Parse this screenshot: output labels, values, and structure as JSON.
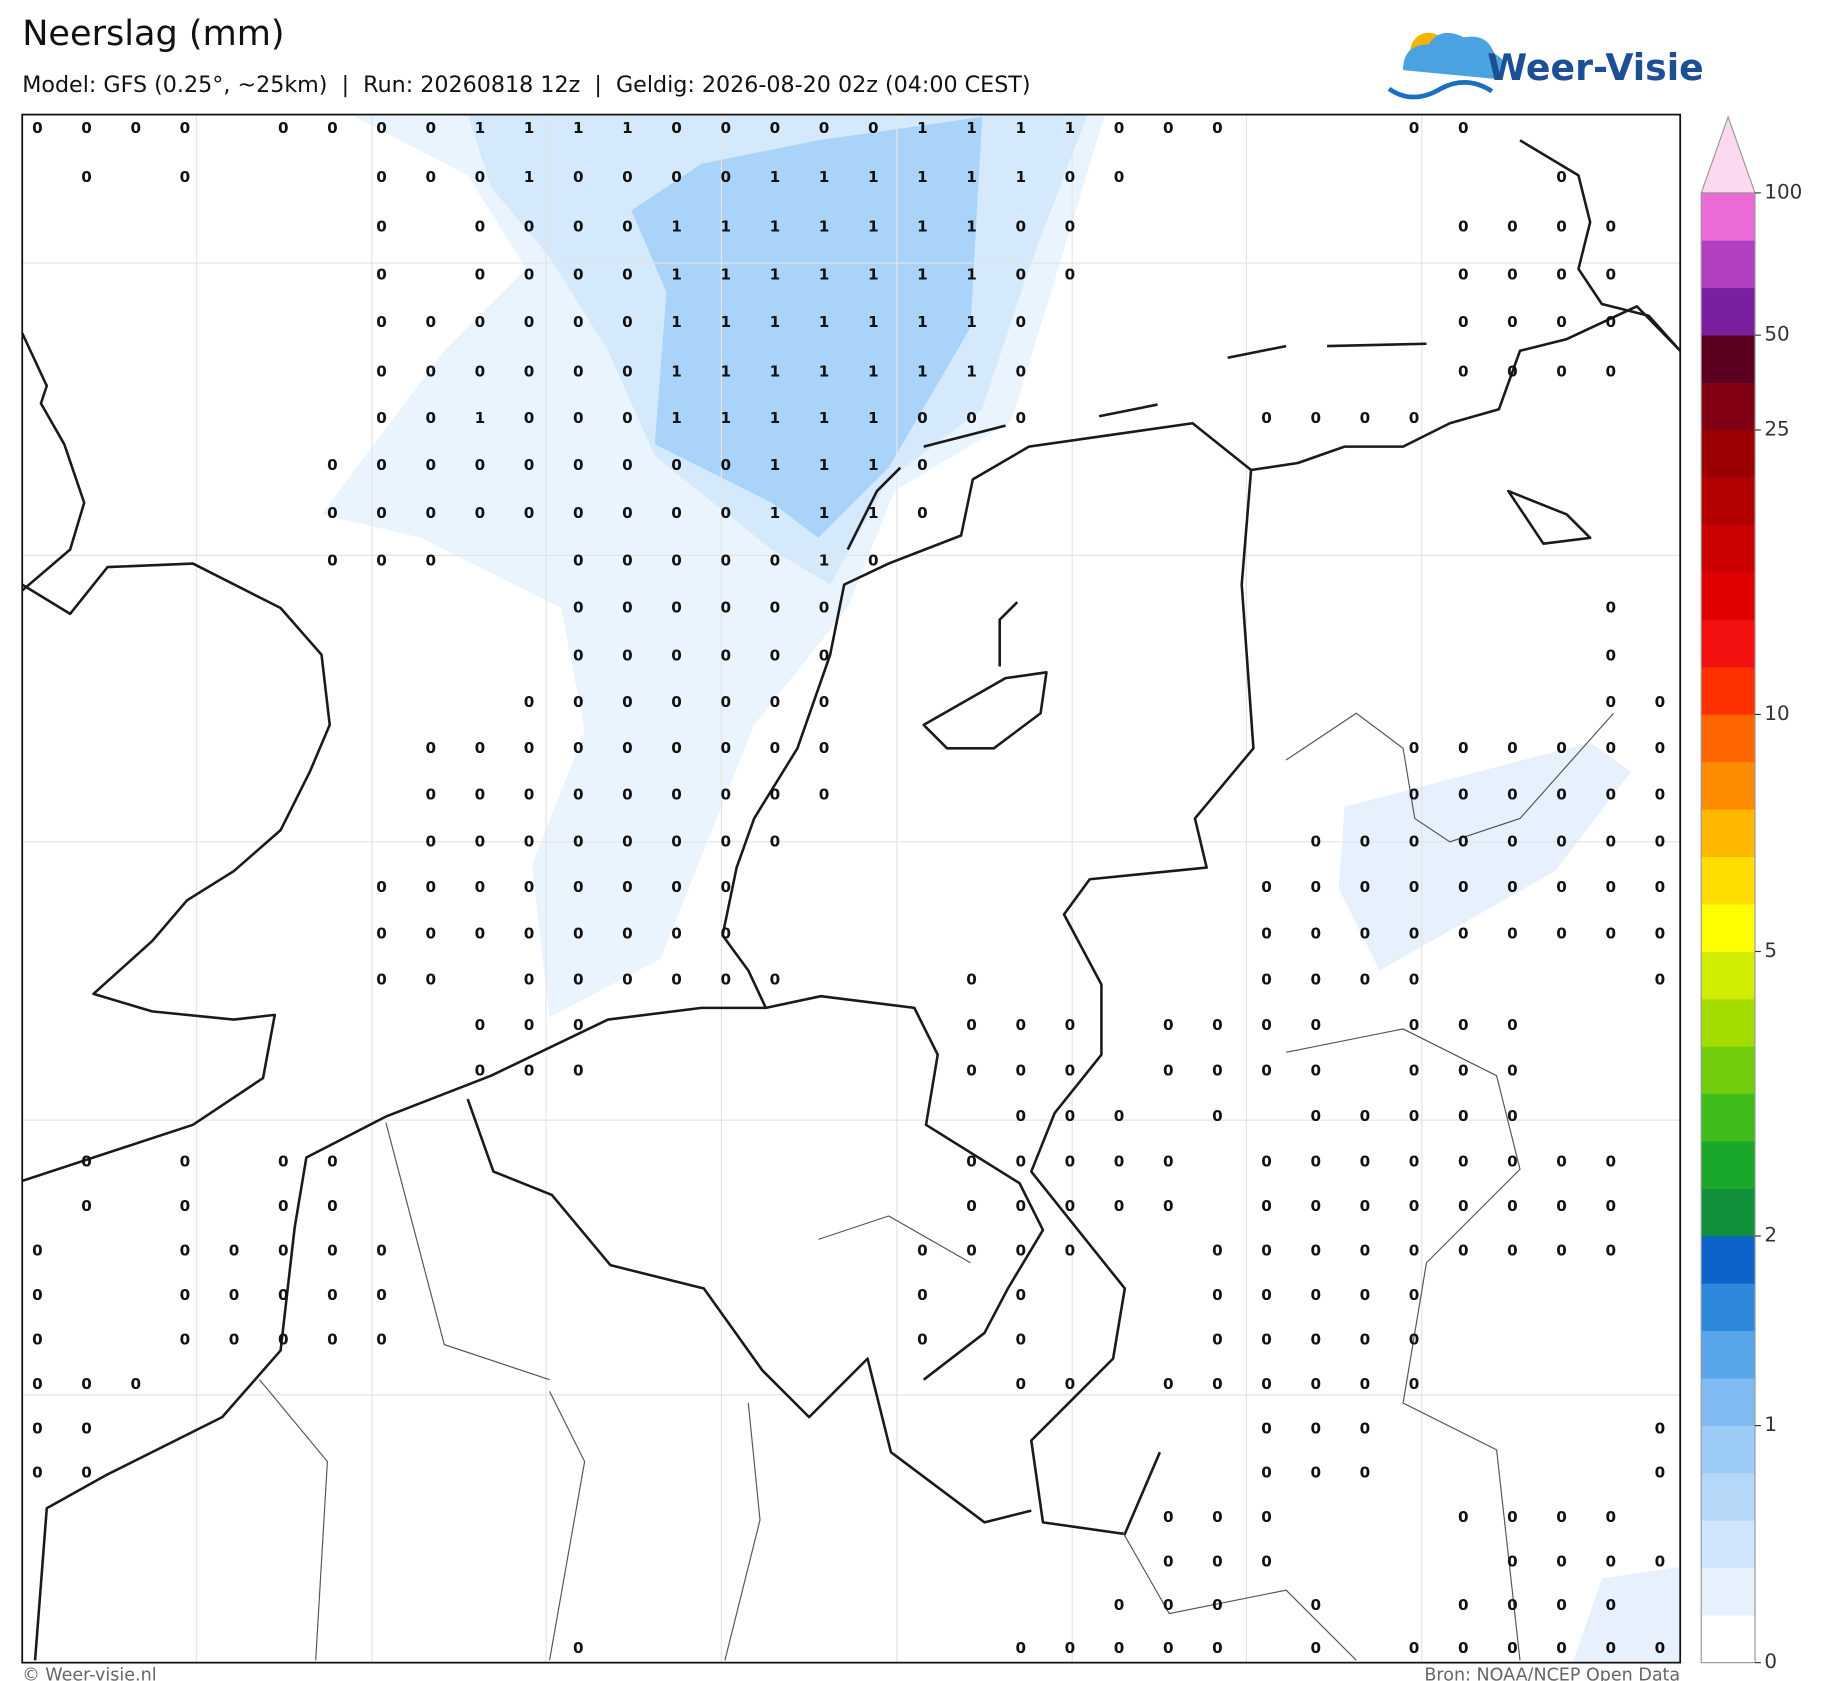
{
  "header": {
    "title": "Neerslag (mm)",
    "subtitle": "Model: GFS (0.25°, ~25km)  |  Run: 20260818 12z  |  Geldig: 2026-08-20 02z (04:00 CEST)"
  },
  "logo": "Weer-Visie",
  "map": {
    "grid": [
      [
        0,
        0,
        0,
        0,
        null,
        0,
        0,
        0,
        0,
        1,
        1,
        1,
        1,
        0,
        0,
        0,
        0,
        0,
        1,
        1,
        1,
        1,
        0,
        0,
        0,
        null,
        null,
        null,
        0,
        0,
        null,
        null,
        null,
        null
      ],
      [
        null,
        0,
        null,
        0,
        null,
        null,
        null,
        0,
        0,
        0,
        1,
        0,
        0,
        0,
        0,
        1,
        1,
        1,
        1,
        1,
        1,
        0,
        0,
        null,
        null,
        null,
        null,
        null,
        null,
        null,
        null,
        0,
        null,
        null
      ],
      [
        null,
        null,
        null,
        null,
        null,
        null,
        null,
        0,
        null,
        0,
        0,
        0,
        0,
        1,
        1,
        1,
        1,
        1,
        1,
        1,
        0,
        0,
        null,
        null,
        null,
        null,
        null,
        null,
        null,
        0,
        0,
        0,
        0,
        null
      ],
      [
        null,
        null,
        null,
        null,
        null,
        null,
        null,
        0,
        null,
        0,
        0,
        0,
        0,
        1,
        1,
        1,
        1,
        1,
        1,
        1,
        0,
        0,
        null,
        null,
        null,
        null,
        null,
        null,
        null,
        0,
        0,
        0,
        0,
        null
      ],
      [
        null,
        null,
        null,
        null,
        null,
        null,
        null,
        0,
        0,
        0,
        0,
        0,
        0,
        1,
        1,
        1,
        1,
        1,
        1,
        1,
        0,
        null,
        null,
        null,
        null,
        null,
        null,
        null,
        null,
        0,
        0,
        0,
        0,
        null
      ],
      [
        null,
        null,
        null,
        null,
        null,
        null,
        null,
        0,
        0,
        0,
        0,
        0,
        0,
        1,
        1,
        1,
        1,
        1,
        1,
        1,
        0,
        null,
        null,
        null,
        null,
        null,
        null,
        null,
        null,
        0,
        0,
        0,
        0,
        null
      ],
      [
        null,
        null,
        null,
        null,
        null,
        null,
        null,
        0,
        0,
        1,
        0,
        0,
        0,
        1,
        1,
        1,
        1,
        1,
        0,
        0,
        0,
        null,
        null,
        null,
        null,
        0,
        0,
        0,
        0,
        null,
        null,
        null,
        null,
        null
      ],
      [
        null,
        null,
        null,
        null,
        null,
        null,
        0,
        0,
        0,
        0,
        0,
        0,
        0,
        0,
        0,
        1,
        1,
        1,
        0,
        null,
        null,
        null,
        null,
        null,
        null,
        null,
        null,
        null,
        null,
        null,
        null,
        null,
        null,
        null
      ],
      [
        null,
        null,
        null,
        null,
        null,
        null,
        0,
        0,
        0,
        0,
        0,
        0,
        0,
        0,
        0,
        1,
        1,
        1,
        0,
        null,
        null,
        null,
        null,
        null,
        null,
        null,
        null,
        null,
        null,
        null,
        null,
        null,
        null,
        null
      ],
      [
        null,
        null,
        null,
        null,
        null,
        null,
        0,
        0,
        0,
        null,
        null,
        0,
        0,
        0,
        0,
        0,
        1,
        0,
        null,
        null,
        null,
        null,
        null,
        null,
        null,
        null,
        null,
        null,
        null,
        null,
        null,
        null,
        null,
        null
      ],
      [
        null,
        null,
        null,
        null,
        null,
        null,
        null,
        null,
        null,
        null,
        null,
        0,
        0,
        0,
        0,
        0,
        0,
        null,
        null,
        null,
        null,
        null,
        null,
        null,
        null,
        null,
        null,
        null,
        null,
        null,
        null,
        null,
        0,
        null
      ],
      [
        null,
        null,
        null,
        null,
        null,
        null,
        null,
        null,
        null,
        null,
        null,
        0,
        0,
        0,
        0,
        0,
        0,
        null,
        null,
        null,
        null,
        null,
        null,
        null,
        null,
        null,
        null,
        null,
        null,
        null,
        null,
        null,
        0,
        null
      ],
      [
        null,
        null,
        null,
        null,
        null,
        null,
        null,
        null,
        null,
        null,
        0,
        0,
        0,
        0,
        0,
        0,
        0,
        null,
        null,
        null,
        null,
        null,
        null,
        null,
        null,
        null,
        null,
        null,
        null,
        null,
        null,
        null,
        0,
        0
      ],
      [
        null,
        null,
        null,
        null,
        null,
        null,
        null,
        null,
        0,
        0,
        0,
        0,
        0,
        0,
        0,
        0,
        0,
        null,
        null,
        null,
        null,
        null,
        null,
        null,
        null,
        null,
        null,
        null,
        0,
        0,
        0,
        0,
        0,
        0
      ],
      [
        null,
        null,
        null,
        null,
        null,
        null,
        null,
        null,
        0,
        0,
        0,
        0,
        0,
        0,
        0,
        0,
        0,
        null,
        null,
        null,
        null,
        null,
        null,
        null,
        null,
        null,
        null,
        null,
        0,
        0,
        0,
        0,
        0,
        0
      ],
      [
        null,
        null,
        null,
        null,
        null,
        null,
        null,
        null,
        0,
        0,
        0,
        0,
        0,
        0,
        0,
        0,
        null,
        null,
        null,
        null,
        null,
        null,
        null,
        null,
        null,
        null,
        0,
        0,
        0,
        0,
        0,
        0,
        0,
        0
      ],
      [
        null,
        null,
        null,
        null,
        null,
        null,
        null,
        0,
        0,
        0,
        0,
        0,
        0,
        0,
        0,
        null,
        null,
        null,
        null,
        null,
        null,
        null,
        null,
        null,
        null,
        0,
        0,
        0,
        0,
        0,
        0,
        0,
        0,
        0
      ],
      [
        null,
        null,
        null,
        null,
        null,
        null,
        null,
        0,
        0,
        0,
        0,
        0,
        0,
        0,
        0,
        null,
        null,
        null,
        null,
        null,
        null,
        null,
        null,
        null,
        null,
        0,
        0,
        0,
        0,
        0,
        0,
        0,
        0,
        0
      ],
      [
        null,
        null,
        null,
        null,
        null,
        null,
        null,
        0,
        0,
        null,
        0,
        0,
        0,
        0,
        0,
        0,
        null,
        null,
        null,
        0,
        null,
        null,
        null,
        null,
        null,
        0,
        0,
        0,
        0,
        null,
        null,
        null,
        null,
        0
      ],
      [
        null,
        null,
        null,
        null,
        null,
        null,
        null,
        null,
        null,
        0,
        0,
        0,
        null,
        null,
        null,
        null,
        null,
        null,
        null,
        0,
        0,
        0,
        null,
        0,
        0,
        0,
        0,
        null,
        0,
        0,
        0,
        null,
        null,
        null
      ],
      [
        null,
        null,
        null,
        null,
        null,
        null,
        null,
        null,
        null,
        0,
        0,
        0,
        null,
        null,
        null,
        null,
        null,
        null,
        null,
        0,
        0,
        0,
        null,
        0,
        0,
        0,
        0,
        null,
        0,
        0,
        0,
        null,
        null,
        null
      ],
      [
        null,
        null,
        null,
        null,
        null,
        null,
        null,
        null,
        null,
        null,
        null,
        null,
        null,
        null,
        null,
        null,
        null,
        null,
        null,
        null,
        0,
        0,
        0,
        null,
        0,
        null,
        0,
        0,
        0,
        0,
        0,
        null,
        null,
        null
      ],
      [
        null,
        0,
        null,
        0,
        null,
        0,
        0,
        null,
        null,
        null,
        null,
        null,
        null,
        null,
        null,
        null,
        null,
        null,
        null,
        0,
        0,
        0,
        0,
        0,
        null,
        0,
        0,
        0,
        0,
        0,
        0,
        0,
        0,
        null
      ],
      [
        null,
        0,
        null,
        0,
        null,
        0,
        0,
        null,
        null,
        null,
        null,
        null,
        null,
        null,
        null,
        null,
        null,
        null,
        null,
        0,
        0,
        0,
        0,
        0,
        null,
        0,
        0,
        0,
        0,
        0,
        0,
        0,
        0,
        null
      ],
      [
        0,
        null,
        null,
        0,
        0,
        0,
        0,
        0,
        null,
        null,
        null,
        null,
        null,
        null,
        null,
        null,
        null,
        null,
        0,
        0,
        0,
        0,
        null,
        null,
        0,
        0,
        0,
        0,
        0,
        0,
        0,
        0,
        0,
        null
      ],
      [
        0,
        null,
        null,
        0,
        0,
        0,
        0,
        0,
        null,
        null,
        null,
        null,
        null,
        null,
        null,
        null,
        null,
        null,
        0,
        null,
        0,
        null,
        null,
        null,
        0,
        0,
        0,
        0,
        0,
        null,
        null,
        null,
        null,
        null
      ],
      [
        0,
        null,
        null,
        0,
        0,
        0,
        0,
        0,
        null,
        null,
        null,
        null,
        null,
        null,
        null,
        null,
        null,
        null,
        0,
        null,
        0,
        null,
        null,
        null,
        0,
        0,
        0,
        0,
        0,
        null,
        null,
        null,
        null,
        null
      ],
      [
        0,
        0,
        0,
        null,
        null,
        null,
        null,
        null,
        null,
        null,
        null,
        null,
        null,
        null,
        null,
        null,
        null,
        null,
        null,
        null,
        0,
        0,
        null,
        0,
        0,
        0,
        0,
        0,
        0,
        null,
        null,
        null,
        null,
        null
      ],
      [
        0,
        0,
        null,
        null,
        null,
        null,
        null,
        null,
        null,
        null,
        null,
        null,
        null,
        null,
        null,
        null,
        null,
        null,
        null,
        null,
        null,
        null,
        null,
        null,
        null,
        0,
        0,
        0,
        null,
        null,
        null,
        null,
        null,
        0
      ],
      [
        0,
        0,
        null,
        null,
        null,
        null,
        null,
        null,
        null,
        null,
        null,
        null,
        null,
        null,
        null,
        null,
        null,
        null,
        null,
        null,
        null,
        null,
        null,
        null,
        null,
        0,
        0,
        0,
        null,
        null,
        null,
        null,
        null,
        0
      ],
      [
        null,
        null,
        null,
        null,
        null,
        null,
        null,
        null,
        null,
        null,
        null,
        null,
        null,
        null,
        null,
        null,
        null,
        null,
        null,
        null,
        null,
        null,
        null,
        0,
        0,
        0,
        null,
        null,
        null,
        0,
        0,
        0,
        0,
        null
      ],
      [
        null,
        null,
        null,
        null,
        null,
        null,
        null,
        null,
        null,
        null,
        null,
        null,
        null,
        null,
        null,
        null,
        null,
        null,
        null,
        null,
        null,
        null,
        null,
        0,
        0,
        0,
        null,
        null,
        null,
        null,
        0,
        0,
        0,
        0
      ],
      [
        null,
        null,
        null,
        null,
        null,
        null,
        null,
        null,
        null,
        null,
        null,
        null,
        null,
        null,
        null,
        null,
        null,
        null,
        null,
        null,
        null,
        null,
        0,
        0,
        0,
        null,
        0,
        null,
        null,
        0,
        0,
        0,
        0,
        null
      ],
      [
        null,
        null,
        null,
        null,
        null,
        null,
        null,
        null,
        null,
        null,
        null,
        0,
        null,
        null,
        null,
        null,
        null,
        null,
        null,
        null,
        0,
        0,
        0,
        0,
        0,
        null,
        0,
        null,
        0,
        0,
        0,
        0,
        0,
        0
      ]
    ]
  },
  "colorbar": {
    "bounds": [
      0,
      0.1,
      0.2,
      0.3,
      0.5,
      1,
      1.25,
      1.5,
      1.75,
      2,
      2.5,
      3,
      3.5,
      4,
      4.5,
      5,
      6,
      7,
      8,
      9,
      10,
      12.5,
      15,
      17.5,
      20,
      22.5,
      25,
      35,
      50,
      65,
      80,
      100
    ],
    "colors": [
      "#ffffff",
      "#e6f1fd",
      "#cfe5fb",
      "#b5d8f9",
      "#9ccbf6",
      "#7fbbf2",
      "#58a6ea",
      "#2e88dc",
      "#0c64c8",
      "#10903a",
      "#1aa82a",
      "#40bc1a",
      "#70cc0c",
      "#a4dc00",
      "#d0ec00",
      "#ffff00",
      "#ffdd00",
      "#ffb800",
      "#ff8c00",
      "#ff6600",
      "#ff3000",
      "#f21010",
      "#e00000",
      "#cc0000",
      "#b40000",
      "#9c0000",
      "#820014",
      "#5c0020",
      "#7a1fa0",
      "#b040c0",
      "#ec6ad6"
    ],
    "extend_color": "#fbd9f1",
    "ticks": [
      0,
      1,
      2,
      5,
      10,
      25,
      50,
      100
    ]
  },
  "footer": {
    "left": "© Weer-visie.nl",
    "right": "Bron: NOAA/NCEP Open Data"
  }
}
